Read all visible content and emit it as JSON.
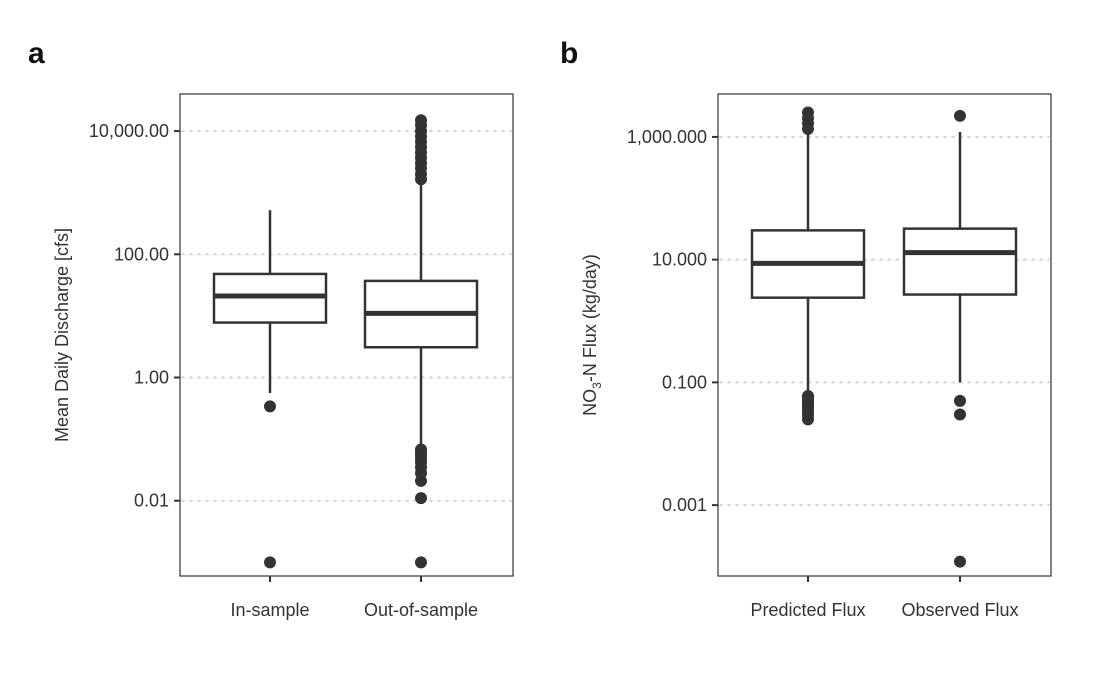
{
  "chart_data": [
    {
      "type": "box",
      "panel_label": "a",
      "title": "",
      "xlabel": "",
      "ylabel": "Mean Daily Discharge [cfs]",
      "y_scale": "log10",
      "ylim": [
        0.0006,
        40000
      ],
      "y_ticks": [
        {
          "value": 0.01,
          "label": "0.01"
        },
        {
          "value": 1,
          "label": "1.00"
        },
        {
          "value": 100,
          "label": "100.00"
        },
        {
          "value": 10000,
          "label": "10,000.00"
        }
      ],
      "grid": "horizontal dotted at major ticks",
      "categories": [
        "In-sample",
        "Out-of-sample"
      ],
      "boxes": [
        {
          "category": "In-sample",
          "whisker_low": 0.56,
          "q1": 7.8,
          "median": 21,
          "q3": 48,
          "whisker_high": 520,
          "outliers": [
            0.34,
            0.001
          ]
        },
        {
          "category": "Out-of-sample",
          "whisker_low": 0.068,
          "q1": 3.1,
          "median": 11,
          "q3": 37,
          "whisker_high": 1500,
          "outliers": [
            0.068,
            0.062,
            0.055,
            0.048,
            0.042,
            0.035,
            0.028,
            0.021,
            0.011,
            0.001,
            1650,
            2000,
            2500,
            3000,
            3700,
            4500,
            5500,
            6700,
            8200,
            10000,
            12500,
            15000
          ]
        }
      ]
    },
    {
      "type": "box",
      "panel_label": "b",
      "title": "",
      "xlabel": "",
      "ylabel": "NO3-N Flux (kg/day)",
      "ylabel_parts": {
        "pre": "NO",
        "sub": "3",
        "post": "-N Flux (kg/day)"
      },
      "y_scale": "log10",
      "ylim": [
        7e-05,
        5000
      ],
      "y_ticks": [
        {
          "value": 0.001,
          "label": "0.001"
        },
        {
          "value": 0.1,
          "label": "0.100"
        },
        {
          "value": 10,
          "label": "10.000"
        },
        {
          "value": 1000,
          "label": "1,000.000"
        }
      ],
      "grid": "horizontal dotted at major ticks",
      "categories": [
        "Predicted Flux",
        "Observed Flux"
      ],
      "boxes": [
        {
          "category": "Predicted Flux",
          "whisker_low": 0.062,
          "q1": 2.4,
          "median": 8.7,
          "q3": 30,
          "whisker_high": 1150,
          "outliers": [
            0.06,
            0.057,
            0.053,
            0.049,
            0.045,
            0.041,
            0.037,
            0.033,
            0.029,
            0.025,
            1350,
            1650,
            2000,
            2500
          ]
        },
        {
          "category": "Observed Flux",
          "whisker_low": 0.1,
          "q1": 2.7,
          "median": 13,
          "q3": 32,
          "whisker_high": 1200,
          "outliers": [
            0.05,
            0.03,
            0.00012,
            2200
          ]
        }
      ]
    }
  ]
}
